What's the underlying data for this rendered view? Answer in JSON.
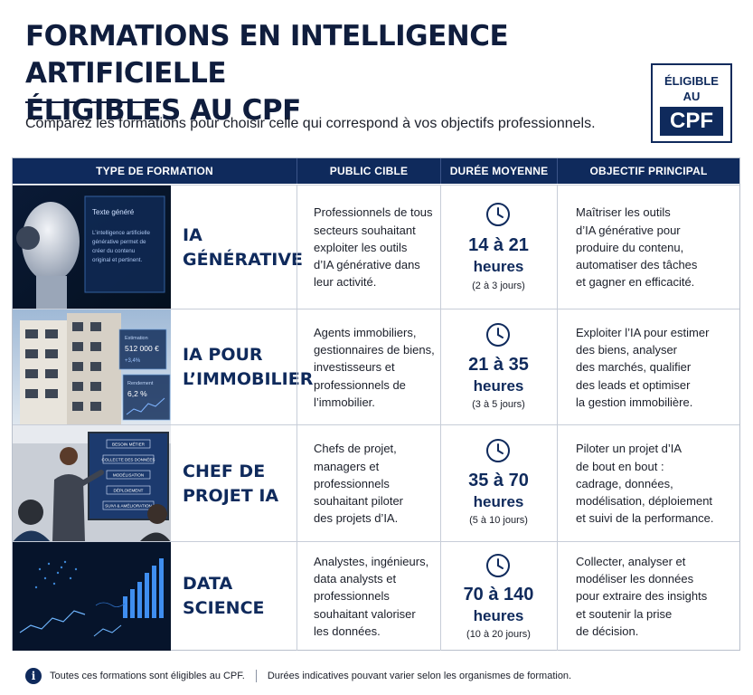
{
  "header": {
    "title_line1": "FORMATIONS EN INTELLIGENCE ARTIFICIELLE",
    "title_line2": "ÉLIGIBLES AU CPF",
    "subtitle": "Comparez les formations pour choisir celle qui correspond à vos objectifs professionnels."
  },
  "badge": {
    "line1": "ÉLIGIBLE",
    "line2": "AU",
    "cpf": "CPF"
  },
  "columns": [
    "TYPE DE FORMATION",
    "PUBLIC CIBLE",
    "DURÉE MOYENNE",
    "OBJECTIF PRINCIPAL"
  ],
  "rows": [
    {
      "name_line1": "IA",
      "name_line2": "GÉNÉRATIVE",
      "public": [
        "Professionnels de tous",
        "secteurs souhaitant",
        "exploiter les outils",
        "d’IA générative dans",
        "leur activité."
      ],
      "duration": "14 à 21",
      "unit": "heures",
      "days": "(2 à 3 jours)",
      "objective": [
        "Maîtriser les outils",
        "d’IA générative pour",
        "produire du contenu,",
        "automatiser des tâches",
        "et gagner en efficacité."
      ],
      "image": {
        "title": "Texte généré",
        "lines": [
          "L’intelligence artificielle",
          "générative permet de",
          "créer du contenu",
          "original et pertinent."
        ]
      }
    },
    {
      "name_line1": "IA POUR",
      "name_line2": "L’IMMOBILIER",
      "public": [
        "Agents immobiliers,",
        "gestionnaires de biens,",
        "investisseurs et",
        "professionnels de",
        "l’immobilier."
      ],
      "duration": "21 à 35",
      "unit": "heures",
      "days": "(3 à 5 jours)",
      "objective": [
        "Exploiter l’IA pour estimer",
        "des biens, analyser",
        "des marchés, qualifier",
        "des leads et optimiser",
        "la gestion immobilière."
      ],
      "image": {
        "price_label": "Estimation",
        "price": "512 000 €",
        "pct1": "+3,4%",
        "rate_label": "Rendement",
        "rate": "6,2 %"
      }
    },
    {
      "name_line1": "CHEF DE",
      "name_line2": "PROJET IA",
      "public": [
        "Chefs de projet,",
        "managers et",
        "professionnels",
        "souhaitant piloter",
        "des projets d’IA."
      ],
      "duration": "35 à 70",
      "unit": "heures",
      "days": "(5 à 10 jours)",
      "objective": [
        "Piloter un projet d’IA",
        "de bout en bout :",
        "cadrage, données,",
        "modélisation, déploiement",
        "et suivi de la performance."
      ],
      "image": {
        "steps": [
          "BESOIN MÉTIER",
          "COLLECTE DES DONNÉES",
          "MODÉLISATION",
          "DÉPLOIEMENT",
          "SUIVI & AMÉLIORATION"
        ]
      }
    },
    {
      "name_line1": "DATA",
      "name_line2": "SCIENCE",
      "public": [
        "Analystes, ingénieurs,",
        "data analysts et",
        "professionnels",
        "souhaitant valoriser",
        "les données."
      ],
      "duration": "70 à 140",
      "unit": "heures",
      "days": "(10 à 20 jours)",
      "objective": [
        "Collecter, analyser et",
        "modéliser les données",
        "pour extraire des insights",
        "et soutenir la prise",
        "de décision."
      ],
      "image": {}
    }
  ],
  "footer": {
    "info_icon": "info-icon",
    "note1": "Toutes ces formations sont éligibles au CPF.",
    "note2": "Durées indicatives pouvant varier selon les organismes de formation."
  },
  "colors": {
    "navy": "#0f2a5c",
    "border": "#c7cdd8",
    "text": "#1b1f2a"
  }
}
